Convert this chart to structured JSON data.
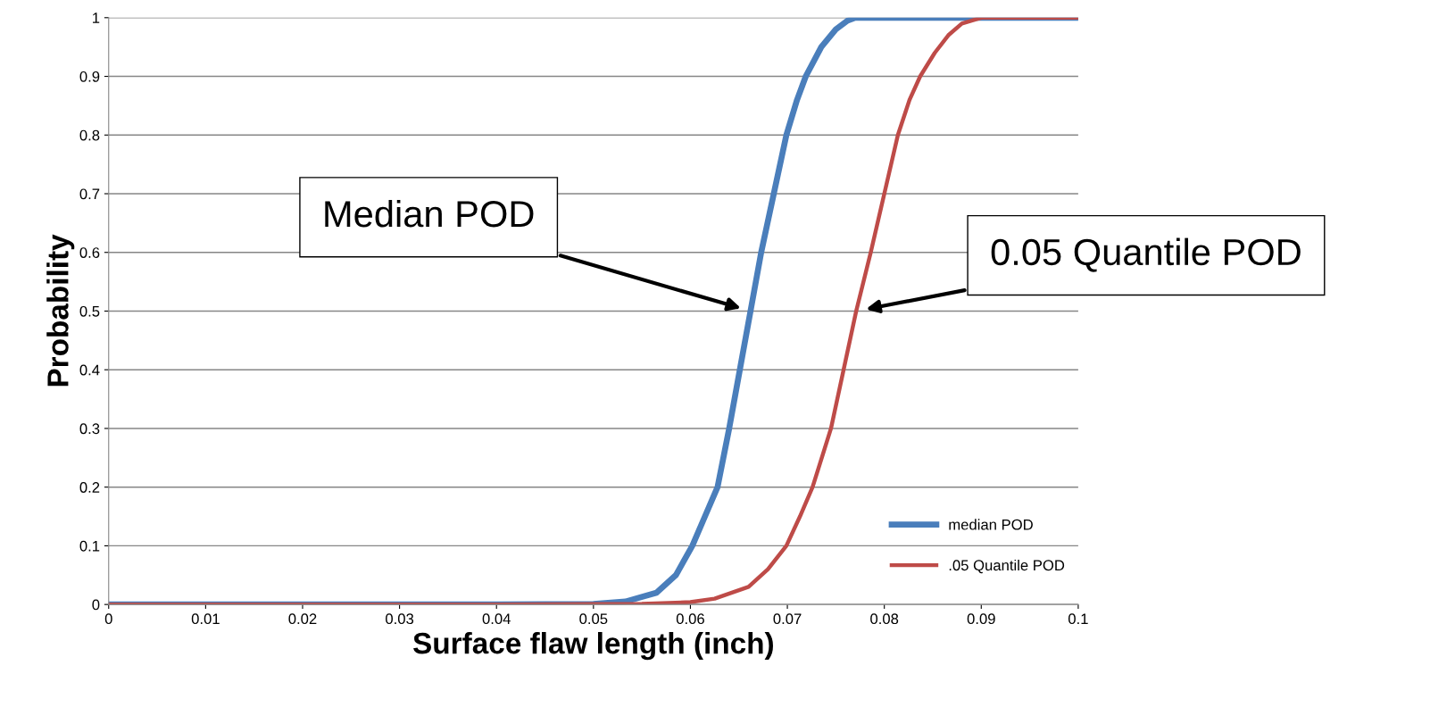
{
  "chart_data": {
    "type": "line",
    "xlabel": "Surface flaw length (inch)",
    "ylabel": "Probability",
    "xlim": [
      0,
      0.1
    ],
    "ylim": [
      0,
      1
    ],
    "xticks": [
      0,
      0.01,
      0.02,
      0.03,
      0.04,
      0.05,
      0.06,
      0.07,
      0.08,
      0.09,
      0.1
    ],
    "yticks": [
      0,
      0.1,
      0.2,
      0.3,
      0.4,
      0.5,
      0.6,
      0.7,
      0.8,
      0.9,
      1
    ],
    "grid": "y",
    "legend": "bottom right",
    "marker": "none",
    "line_style": "solid",
    "series": [
      {
        "name": "median POD",
        "color": "#4a7ebb",
        "x": [
          0,
          0.04,
          0.05,
          0.0533,
          0.0565,
          0.0585,
          0.0602,
          0.0615,
          0.0628,
          0.064,
          0.0651,
          0.0662,
          0.0673,
          0.0686,
          0.0699,
          0.071,
          0.0719,
          0.0735,
          0.075,
          0.0762,
          0.077,
          0.08,
          0.09,
          0.1
        ],
        "values": [
          0,
          0,
          0.001,
          0.005,
          0.02,
          0.05,
          0.1,
          0.15,
          0.2,
          0.3,
          0.4,
          0.5,
          0.6,
          0.7,
          0.8,
          0.86,
          0.9,
          0.95,
          0.98,
          0.995,
          1,
          1,
          1,
          1
        ]
      },
      {
        "name": ".05 Quantile POD",
        "color": "#be4b48",
        "x": [
          0,
          0.04,
          0.055,
          0.06,
          0.0625,
          0.066,
          0.068,
          0.0699,
          0.0713,
          0.0726,
          0.0745,
          0.0758,
          0.0771,
          0.0786,
          0.08,
          0.0814,
          0.0826,
          0.0837,
          0.0852,
          0.0866,
          0.088,
          0.09,
          0.1
        ],
        "values": [
          0,
          0,
          0.001,
          0.004,
          0.01,
          0.03,
          0.06,
          0.1,
          0.15,
          0.2,
          0.3,
          0.4,
          0.5,
          0.6,
          0.7,
          0.8,
          0.86,
          0.9,
          0.94,
          0.97,
          0.99,
          1,
          1
        ]
      }
    ],
    "annotations": [
      "Median POD",
      "0.05 Quantile POD"
    ]
  }
}
